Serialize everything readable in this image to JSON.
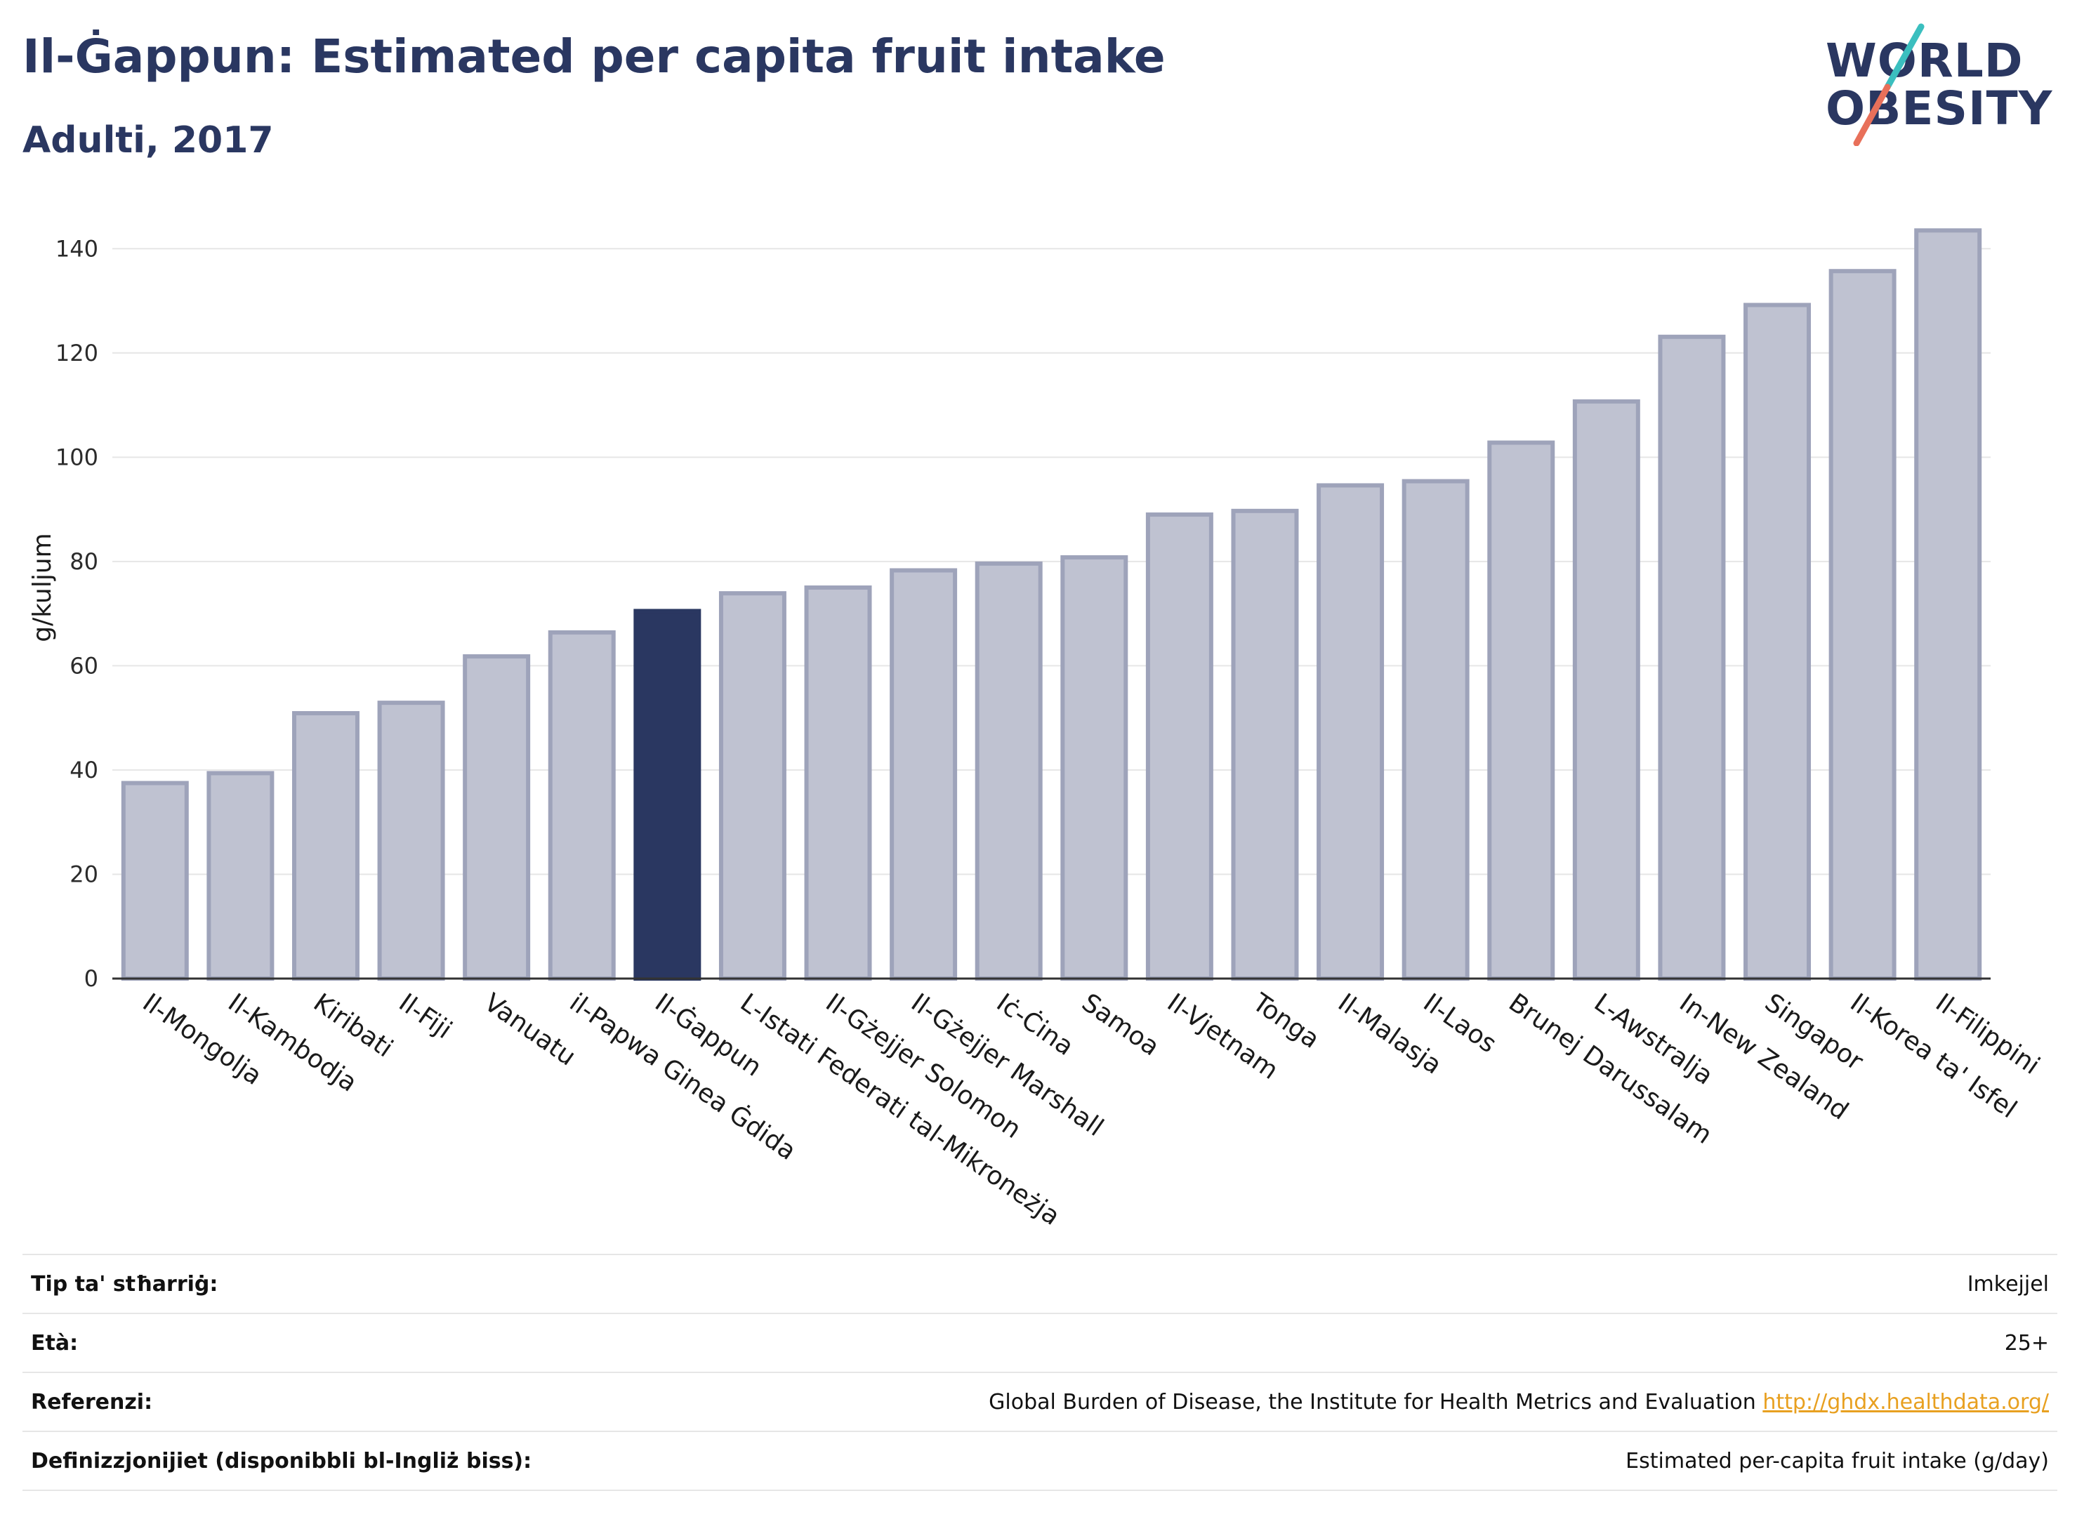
{
  "title": "Il-Ġappun: Estimated per capita fruit intake",
  "subtitle": "Adulti, 2017",
  "logo": {
    "line1": "WORLD",
    "line2": "OBESITY",
    "slash_colors": [
      "#3bbfbf",
      "#e8705a"
    ]
  },
  "colors": {
    "bar": "#bfc2d1",
    "bar_border": "#9ea3ba",
    "highlight": "#2a3761",
    "grid": "#e6e6e6",
    "axis_text": "#2b2b2b"
  },
  "chart_data": {
    "type": "bar",
    "ylabel": "g/kuljum",
    "xlabel": "",
    "ylim": [
      0,
      150
    ],
    "yticks": [
      0,
      20,
      40,
      60,
      80,
      100,
      120,
      140
    ],
    "grid": true,
    "highlight": "Il-Ġappun",
    "categories": [
      "Il-Mongolja",
      "Il-Kambodja",
      "Kiribati",
      "Il-Fiji",
      "Vanuatu",
      "il-Papwa Ginea Ġdida",
      "Il-Ġappun",
      "L-Istati Federati tal-Mikroneżja",
      "Il-Gżejjer Solomon",
      "Il-Gżejjer Marshall",
      "Iċ-Ċina",
      "Samoa",
      "Il-Vjetnam",
      "Tonga",
      "Il-Malasja",
      "Il-Laos",
      "Brunej Darussalam",
      "L-Awstralja",
      "In-New Zealand",
      "Singapor",
      "Il-Korea ta' Isfel",
      "Il-Filippini"
    ],
    "values": [
      37.5,
      39.4,
      50.9,
      52.9,
      61.8,
      66.4,
      70.5,
      73.9,
      75.0,
      78.3,
      79.6,
      80.8,
      89.0,
      89.7,
      94.6,
      95.4,
      102.8,
      110.7,
      123.1,
      129.2,
      135.7,
      143.5
    ]
  },
  "meta": {
    "rows": [
      {
        "label": "Tip ta' stħarriġ:",
        "value": "Imkejjel",
        "link": ""
      },
      {
        "label": "Età:",
        "value": "25+",
        "link": ""
      },
      {
        "label": "Referenzi:",
        "value": "Global Burden of Disease, the Institute for Health Metrics and Evaluation ",
        "link": "http://ghdx.healthdata.org/"
      },
      {
        "label": "Definizzjonijiet (disponibbli bl-Ingliż biss):",
        "value": "Estimated per-capita fruit intake (g/day)",
        "link": ""
      }
    ]
  }
}
